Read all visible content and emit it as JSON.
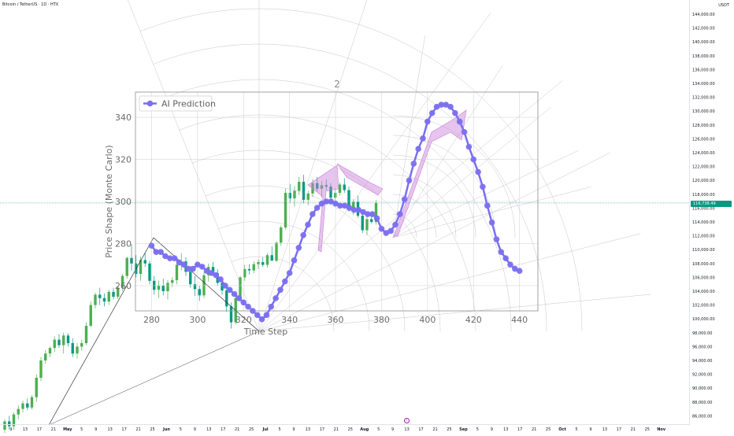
{
  "header": {
    "symbol_title": "Bitcoin / TetherUS · 1D · HTX",
    "currency": "USDT"
  },
  "price_axis": {
    "labels": [
      "144,000.00",
      "142,000.00",
      "140,000.00",
      "138,000.00",
      "136,000.00",
      "134,000.00",
      "132,000.00",
      "130,000.00",
      "128,000.00",
      "126,000.00",
      "124,000.00",
      "122,000.00",
      "120,000.00",
      "118,000.00",
      "116,000.00",
      "114,000.00",
      "112,000.00",
      "110,000.00",
      "108,000.00",
      "106,000.00",
      "104,000.00",
      "102,000.00",
      "100,000.00",
      "98,000.00",
      "96,000.00",
      "94,000.00",
      "92,000.00",
      "90,000.00",
      "88,000.00",
      "86,000.00"
    ],
    "current_price": "116,738.49"
  },
  "time_axis": {
    "labels": [
      "9",
      "13",
      "17",
      "21",
      "May",
      "5",
      "9",
      "13",
      "17",
      "21",
      "25",
      "Jun",
      "5",
      "9",
      "13",
      "17",
      "21",
      "25",
      "Jul",
      "5",
      "9",
      "13",
      "17",
      "21",
      "25",
      "Aug",
      "5",
      "9",
      "13",
      "17",
      "21",
      "25",
      "Sep",
      "5",
      "9",
      "13",
      "17",
      "21",
      "25",
      "Oct",
      "5",
      "9",
      "13",
      "17",
      "21",
      "25",
      "Nov"
    ],
    "bold_labels": [
      "May",
      "Jun",
      "Jul",
      "Aug",
      "Sep",
      "Oct",
      "Nov"
    ]
  },
  "overlay_label": "2",
  "colors": {
    "up": "#4caf50",
    "down": "#089981",
    "prediction": "#7b6ff0",
    "arrow": "#c77dd8",
    "price_badge": "#089981"
  },
  "chart_data": [
    {
      "type": "line",
      "name": "embedded-prediction-plot",
      "legend": "AI Prediction",
      "xlabel": "Time Step",
      "ylabel": "Price Shape (Monte Carlo)",
      "xlim": [
        273,
        448
      ],
      "ylim": [
        248,
        352
      ],
      "x_ticks": [
        280,
        300,
        320,
        340,
        360,
        380,
        400,
        420,
        440
      ],
      "y_ticks": [
        260,
        280,
        300,
        320,
        340
      ],
      "grid": true,
      "legend_position": "top-left",
      "series": [
        {
          "name": "AI Prediction",
          "x": [
            280,
            282,
            284,
            286,
            288,
            290,
            292,
            294,
            296,
            298,
            300,
            302,
            304,
            306,
            308,
            310,
            312,
            314,
            316,
            318,
            320,
            322,
            324,
            326,
            328,
            330,
            332,
            334,
            336,
            338,
            340,
            342,
            344,
            346,
            348,
            350,
            352,
            354,
            356,
            358,
            360,
            362,
            364,
            366,
            368,
            370,
            372,
            374,
            376,
            378,
            380,
            382,
            384,
            386,
            388,
            390,
            392,
            394,
            396,
            398,
            400,
            402,
            404,
            406,
            408,
            410,
            412,
            414,
            416,
            418,
            420,
            422,
            424,
            426,
            428,
            430,
            432,
            434,
            436,
            438,
            440
          ],
          "y": [
            279,
            276,
            276,
            274,
            273,
            273,
            271,
            270,
            268,
            268,
            270,
            269,
            267,
            266,
            265,
            263,
            260,
            258,
            256,
            254,
            252,
            250,
            248,
            246,
            244,
            246,
            250,
            254,
            258,
            262,
            266,
            272,
            278,
            284,
            289,
            294,
            297,
            299,
            300,
            300,
            299,
            298,
            298,
            297,
            296,
            296,
            295,
            294,
            294,
            292,
            287,
            285,
            286,
            289,
            294,
            301,
            310,
            318,
            325,
            330,
            338,
            342,
            345,
            346,
            346,
            345,
            342,
            338,
            333,
            326,
            320,
            314,
            307,
            298,
            290,
            282,
            276,
            273,
            270,
            268,
            267
          ]
        }
      ]
    },
    {
      "type": "candlestick",
      "name": "BTCUSDT-1D",
      "y_axis_range": [
        85000,
        145000
      ],
      "candles_note": "daily candles from early April to early August",
      "series": [
        {
          "name": "candles",
          "values": [
            [
              84000,
              85500,
              83500,
              85200
            ],
            [
              85200,
              86000,
              84000,
              84500
            ],
            [
              84500,
              86500,
              84000,
              86200
            ],
            [
              86200,
              87500,
              85500,
              87000
            ],
            [
              87000,
              88200,
              86500,
              87800
            ],
            [
              87800,
              88500,
              86800,
              87200
            ],
            [
              87200,
              89000,
              86900,
              88700
            ],
            [
              88700,
              92000,
              88000,
              91500
            ],
            [
              91500,
              94500,
              91000,
              94000
            ],
            [
              94000,
              95500,
              93500,
              95000
            ],
            [
              95000,
              96000,
              94500,
              95800
            ],
            [
              95800,
              97500,
              95200,
              97000
            ],
            [
              97000,
              97800,
              95800,
              96200
            ],
            [
              96200,
              98000,
              95000,
              97600
            ],
            [
              97600,
              97900,
              96000,
              96500
            ],
            [
              96500,
              97200,
              94500,
              95000
            ],
            [
              95000,
              96500,
              94300,
              96000
            ],
            [
              96000,
              97000,
              95400,
              96500
            ],
            [
              96500,
              99500,
              96200,
              99000
            ],
            [
              99000,
              102500,
              98800,
              102000
            ],
            [
              102000,
              103800,
              101500,
              103500
            ],
            [
              103500,
              104500,
              102000,
              103000
            ],
            [
              103000,
              103700,
              101800,
              102500
            ],
            [
              102500,
              104200,
              102000,
              103900
            ],
            [
              103900,
              104500,
              102800,
              103200
            ],
            [
              103200,
              104800,
              102900,
              104500
            ],
            [
              104500,
              106500,
              104000,
              106200
            ],
            [
              106200,
              109000,
              105800,
              108800
            ],
            [
              108800,
              110800,
              107000,
              108000
            ],
            [
              108000,
              109200,
              106000,
              106500
            ],
            [
              106500,
              109000,
              105500,
              108500
            ],
            [
              108500,
              109500,
              107500,
              108000
            ],
            [
              108000,
              108400,
              105000,
              105500
            ],
            [
              105500,
              106200,
              103500,
              104200
            ],
            [
              104200,
              105500,
              103000,
              104800
            ],
            [
              104800,
              105800,
              103400,
              104000
            ],
            [
              104000,
              105600,
              102800,
              105200
            ],
            [
              105200,
              106000,
              104600,
              105600
            ],
            [
              105600,
              108200,
              105000,
              107800
            ],
            [
              107800,
              109500,
              107000,
              108300
            ],
            [
              108300,
              108900,
              106200,
              106800
            ],
            [
              106800,
              107600,
              104500,
              105000
            ],
            [
              105000,
              106200,
              103300,
              104300
            ],
            [
              104300,
              104800,
              102600,
              103400
            ],
            [
              103400,
              106800,
              103000,
              106300
            ],
            [
              106300,
              108000,
              105400,
              107500
            ],
            [
              107500,
              108200,
              106300,
              106600
            ],
            [
              106600,
              107200,
              104800,
              105200
            ],
            [
              105200,
              105800,
              103500,
              104100
            ],
            [
              104100,
              105000,
              101000,
              101800
            ],
            [
              101800,
              102400,
              98600,
              99500
            ],
            [
              99500,
              103500,
              99200,
              103000
            ],
            [
              103000,
              106200,
              102700,
              106000
            ],
            [
              106000,
              107800,
              105500,
              107200
            ],
            [
              107200,
              107900,
              106400,
              107000
            ],
            [
              107000,
              108300,
              106600,
              107900
            ],
            [
              107900,
              108600,
              107200,
              108200
            ],
            [
              108200,
              108900,
              107500,
              107800
            ],
            [
              107800,
              109500,
              107400,
              109200
            ],
            [
              109200,
              110500,
              108700,
              108400
            ],
            [
              108400,
              111200,
              108200,
              111000
            ],
            [
              111000,
              113500,
              110600,
              113200
            ],
            [
              113200,
              118800,
              112900,
              118200
            ],
            [
              118200,
              119500,
              116800,
              117400
            ],
            [
              117400,
              119200,
              116200,
              118500
            ],
            [
              118500,
              120500,
              117900,
              119800
            ],
            [
              119800,
              120800,
              116700,
              117200
            ],
            [
              117200,
              118500,
              116400,
              118100
            ],
            [
              118100,
              120200,
              117600,
              119600
            ],
            [
              119600,
              120500,
              118400,
              118800
            ],
            [
              118800,
              119900,
              117500,
              119300
            ],
            [
              119300,
              120100,
              118600,
              119100
            ],
            [
              119100,
              119600,
              117200,
              117500
            ],
            [
              117500,
              118900,
              116900,
              118200
            ],
            [
              118200,
              119700,
              117800,
              119400
            ],
            [
              119400,
              120300,
              118200,
              118600
            ],
            [
              118600,
              119100,
              115500,
              115800
            ],
            [
              115800,
              117300,
              115000,
              116900
            ],
            [
              116900,
              117800,
              114600,
              114900
            ],
            [
              114900,
              115500,
              112400,
              112800
            ],
            [
              112800,
              114800,
              112100,
              114400
            ],
            [
              114400,
              115200,
              113800,
              114000
            ],
            [
              114000,
              117200,
              113600,
              116739
            ]
          ]
        }
      ]
    }
  ]
}
